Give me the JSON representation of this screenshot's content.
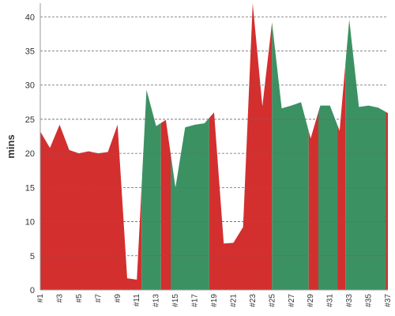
{
  "chart_data": {
    "type": "area",
    "title": "",
    "xlabel": "",
    "ylabel": "mins",
    "ylim": [
      0,
      42
    ],
    "yticks": [
      0,
      5,
      10,
      15,
      20,
      25,
      30,
      35,
      40
    ],
    "grid": true,
    "x": [
      "#1",
      "#2",
      "#3",
      "#4",
      "#5",
      "#6",
      "#7",
      "#8",
      "#9",
      "#10",
      "#11",
      "#12",
      "#13",
      "#14",
      "#15",
      "#16",
      "#17",
      "#18",
      "#19",
      "#20",
      "#21",
      "#22",
      "#23",
      "#24",
      "#25",
      "#26",
      "#27",
      "#28",
      "#29",
      "#30",
      "#31",
      "#32",
      "#33",
      "#34",
      "#35",
      "#36",
      "#37"
    ],
    "x_tick_labels": [
      "#1",
      "#3",
      "#5",
      "#7",
      "#9",
      "#11",
      "#13",
      "#15",
      "#17",
      "#19",
      "#21",
      "#23",
      "#25",
      "#27",
      "#29",
      "#31",
      "#33",
      "#35",
      "#37"
    ],
    "values": [
      23.2,
      20.8,
      24.2,
      20.5,
      20.0,
      20.3,
      20.0,
      20.2,
      24.2,
      1.7,
      1.5,
      29.3,
      24.0,
      24.9,
      15.0,
      23.8,
      24.2,
      24.4,
      26.0,
      6.8,
      6.9,
      9.2,
      42.0,
      26.9,
      39.2,
      26.6,
      27.0,
      27.5,
      22.2,
      27.0,
      27.0,
      23.3,
      39.6,
      26.8,
      27.0,
      26.7,
      25.9
    ],
    "colors": {
      "red": "#d32f2f",
      "green": "#3c9163",
      "grid": "#666666",
      "axis": "#999999"
    },
    "bands": [
      {
        "from": 0,
        "to": 10.5,
        "color": "red"
      },
      {
        "from": 10.5,
        "to": 12.5,
        "color": "green"
      },
      {
        "from": 12.5,
        "to": 13.5,
        "color": "red"
      },
      {
        "from": 13.5,
        "to": 17.5,
        "color": "green"
      },
      {
        "from": 17.5,
        "to": 24.0,
        "color": "red"
      },
      {
        "from": 24.0,
        "to": 27.8,
        "color": "green"
      },
      {
        "from": 27.8,
        "to": 28.8,
        "color": "red"
      },
      {
        "from": 28.8,
        "to": 30.8,
        "color": "green"
      },
      {
        "from": 30.8,
        "to": 31.6,
        "color": "red"
      },
      {
        "from": 31.6,
        "to": 35.8,
        "color": "green"
      },
      {
        "from": 35.8,
        "to": 36.0,
        "color": "red"
      }
    ]
  }
}
